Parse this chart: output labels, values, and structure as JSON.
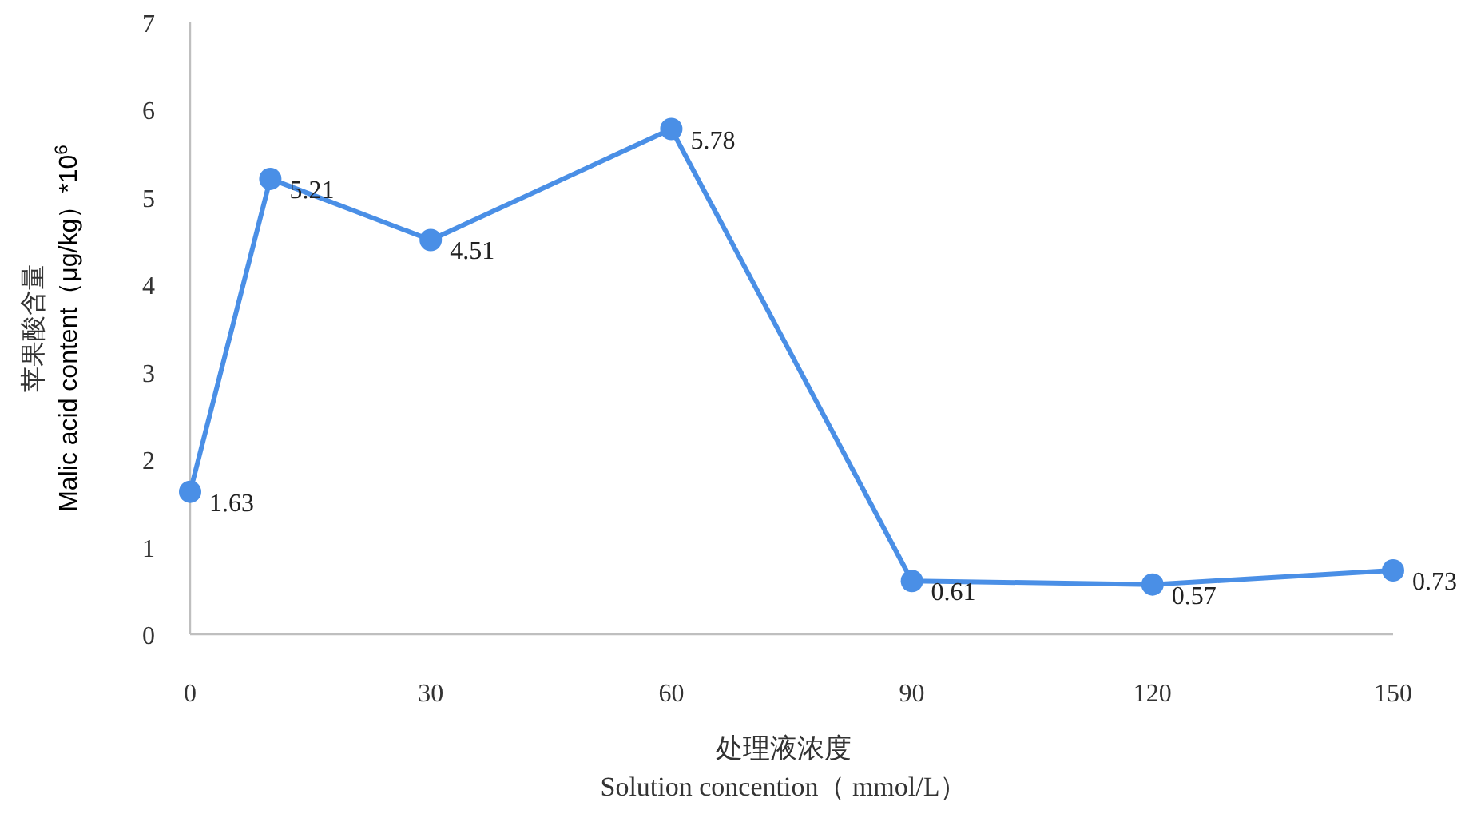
{
  "chart_data": {
    "type": "line",
    "xlabel": "处理液浓度\nSolution concention（ mmol/L）",
    "ylabel": "苹果酸含量\nMalic acid content（μg/kg）*10$^{6}$",
    "x": [
      0,
      10,
      30,
      60,
      90,
      120,
      150
    ],
    "series": [
      {
        "color": "#4a8fe6",
        "values": [
          1.63,
          5.21,
          4.51,
          5.78,
          0.61,
          0.57,
          0.73
        ]
      }
    ],
    "xlim": [
      0,
      150
    ],
    "xticks": [
      0,
      30,
      60,
      90,
      120,
      150
    ],
    "ylim": [
      0,
      7
    ],
    "yticks": [
      0,
      1,
      2,
      3,
      4,
      5,
      6,
      7
    ],
    "data_labels": true,
    "marker": "circle",
    "line_style": "solid"
  }
}
